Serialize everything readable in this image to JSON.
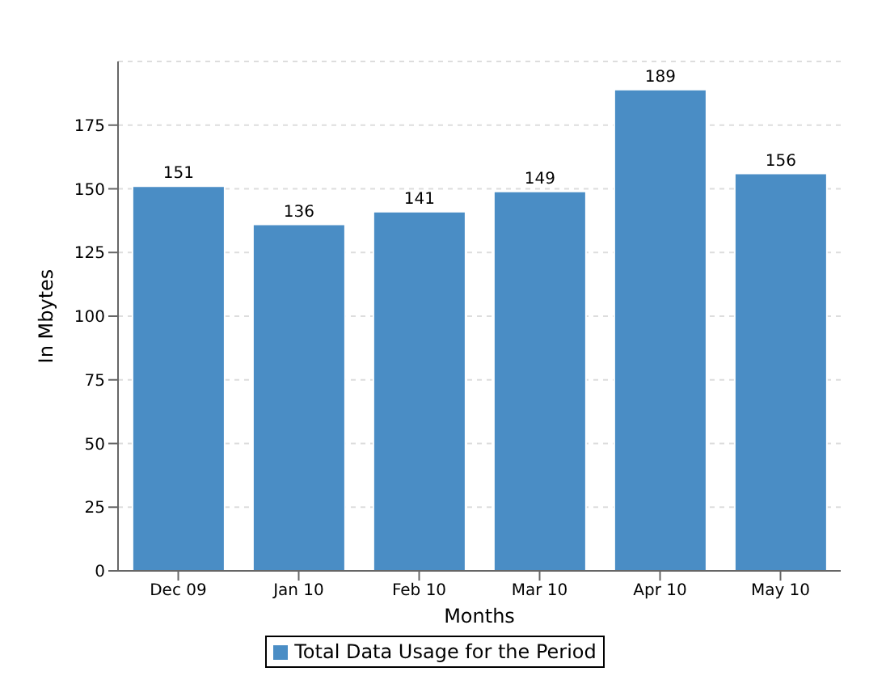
{
  "chart_data": {
    "type": "bar",
    "xlabel": "Months",
    "ylabel": "In Mbytes",
    "categories": [
      "Dec 09",
      "Jan 10",
      "Feb 10",
      "Mar 10",
      "Apr 10",
      "May 10"
    ],
    "series": [
      {
        "name": "Total Data Usage for the Period",
        "color": "#4a8dc5",
        "values": [
          151,
          136,
          141,
          149,
          189,
          156
        ]
      }
    ],
    "ylim": [
      0,
      200
    ],
    "yticks": [
      0,
      25,
      50,
      75,
      100,
      125,
      150,
      175
    ],
    "grid": "y",
    "legend": "bottom",
    "data_labels": true
  }
}
